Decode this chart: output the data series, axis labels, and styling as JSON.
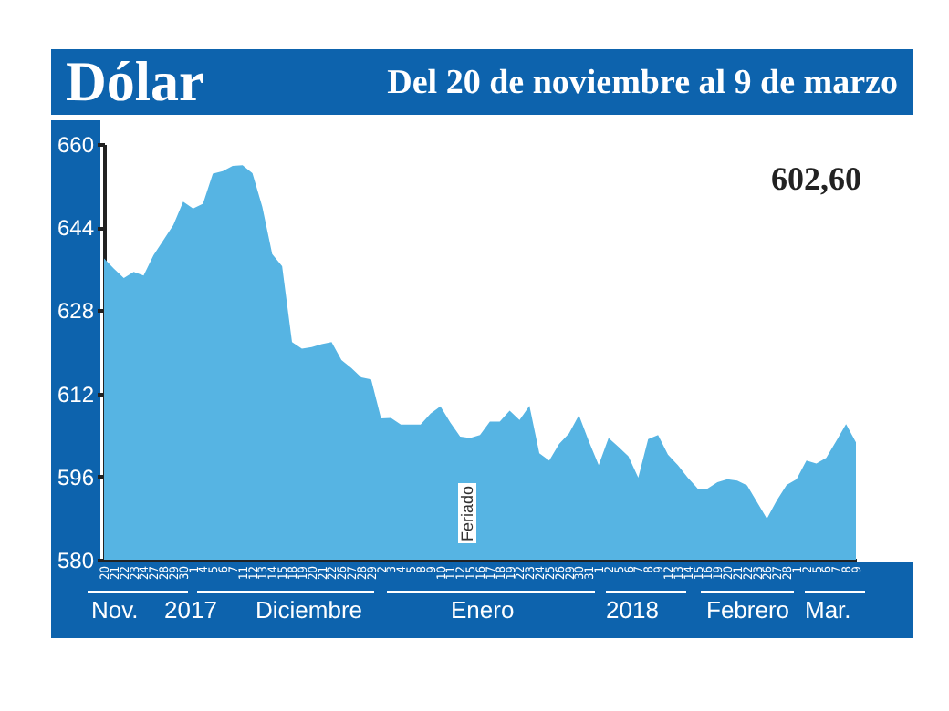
{
  "chart_data": {
    "type": "area",
    "title": "Dólar",
    "subtitle": "Del 20 de noviembre al 9 de marzo",
    "categories": [
      "20",
      "21",
      "22",
      "23",
      "24",
      "27",
      "28",
      "29",
      "30",
      "1",
      "4",
      "5",
      "6",
      "7",
      "11",
      "12",
      "13",
      "14",
      "15",
      "18",
      "19",
      "20",
      "21",
      "22",
      "26",
      "27",
      "28",
      "29",
      "2",
      "3",
      "4",
      "5",
      "8",
      "9",
      "10",
      "11",
      "12",
      "15",
      "16",
      "17",
      "18",
      "19",
      "22",
      "23",
      "24",
      "25",
      "26",
      "29",
      "30",
      "31",
      "1",
      "2",
      "5",
      "6",
      "7",
      "8",
      "9",
      "12",
      "13",
      "14",
      "15",
      "16",
      "19",
      "20",
      "21",
      "22",
      "23",
      "26",
      "27",
      "28",
      "1",
      "2",
      "5",
      "6",
      "7",
      "8",
      "9"
    ],
    "series": [
      {
        "color": "#56b4e3",
        "values": [
          638.0,
          636.0,
          634.2,
          635.4,
          634.7,
          638.6,
          641.5,
          644.4,
          648.9,
          647.6,
          648.5,
          654.3,
          654.8,
          655.8,
          655.9,
          654.4,
          647.9,
          638.8,
          636.5,
          621.9,
          620.6,
          620.9,
          621.5,
          621.9,
          618.4,
          616.9,
          615.1,
          614.7,
          607.2,
          607.3,
          606.0,
          606.0,
          606.0,
          608.1,
          609.5,
          606.4,
          603.7,
          603.4,
          604.0,
          606.6,
          606.6,
          608.7,
          606.9,
          609.6,
          600.5,
          599.1,
          602.3,
          604.3,
          607.8,
          602.8,
          598.2,
          603.4,
          601.7,
          599.9,
          595.8,
          603.2,
          604.0,
          600.2,
          598.2,
          595.8,
          593.7,
          593.7,
          594.9,
          595.5,
          595.2,
          594.3,
          591.1,
          587.9,
          591.4,
          594.4,
          595.5,
          599.1,
          598.5,
          599.6,
          602.8,
          606.1,
          602.6
        ]
      }
    ],
    "ylim": [
      580,
      660
    ],
    "yticks": [
      580,
      596,
      612,
      628,
      644,
      660
    ],
    "annotations": [
      "602,60",
      "Feriado",
      "Nov.",
      "2017",
      "Diciembre",
      "Enero",
      "2018",
      "Febrero",
      "Mar."
    ]
  }
}
